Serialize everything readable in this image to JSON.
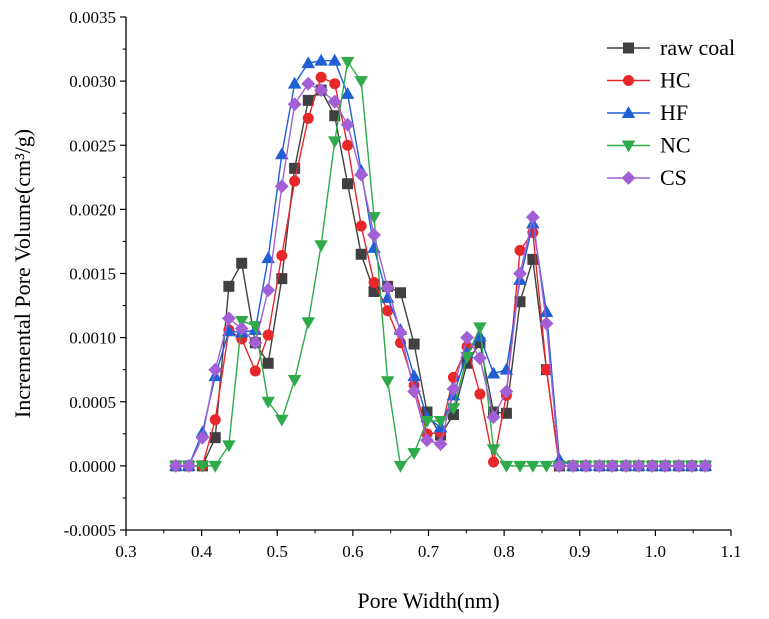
{
  "chart_data": {
    "type": "line",
    "xlabel": "Pore Width(nm)",
    "ylabel": "Incremental Pore Volume(cm³/g)",
    "xlim": [
      0.3,
      1.1
    ],
    "ylim": [
      -0.0005,
      0.0035
    ],
    "xticks": [
      "0.3",
      "0.4",
      "0.5",
      "0.6",
      "0.7",
      "0.8",
      "0.9",
      "1.0",
      "1.1"
    ],
    "yticks": [
      "-0.0005",
      "0.0000",
      "0.0005",
      "0.0010",
      "0.0015",
      "0.0020",
      "0.0025",
      "0.0030",
      "0.0035"
    ],
    "legend_position": "top-right",
    "grid": false,
    "x": [
      0.366,
      0.383,
      0.401,
      0.418,
      0.436,
      0.453,
      0.471,
      0.488,
      0.506,
      0.523,
      0.541,
      0.558,
      0.576,
      0.593,
      0.611,
      0.628,
      0.646,
      0.663,
      0.681,
      0.698,
      0.716,
      0.733,
      0.751,
      0.768,
      0.786,
      0.803,
      0.821,
      0.838,
      0.856,
      0.873,
      0.891,
      0.908,
      0.926,
      0.943,
      0.961,
      0.978,
      0.996,
      1.013,
      1.031,
      1.048,
      1.066
    ],
    "series": [
      {
        "name": "raw coal",
        "color": "#404040",
        "marker": "square",
        "values": [
          0.0,
          0.0,
          0.0,
          0.00022,
          0.0014,
          0.00158,
          0.00096,
          0.0008,
          0.00146,
          0.00232,
          0.00285,
          0.00293,
          0.00273,
          0.0022,
          0.00165,
          0.00136,
          0.0014,
          0.00135,
          0.00095,
          0.00042,
          0.00024,
          0.0004,
          0.0008,
          0.00096,
          0.00042,
          0.00041,
          0.00128,
          0.00161,
          0.00075,
          0.0,
          0.0,
          0.0,
          0.0,
          0.0,
          0.0,
          0.0,
          0.0,
          0.0,
          0.0,
          0.0,
          0.0
        ]
      },
      {
        "name": "HC",
        "color": "#e8272a",
        "marker": "circle",
        "values": [
          0.0,
          0.0,
          0.0,
          0.00036,
          0.00106,
          0.00099,
          0.00074,
          0.00102,
          0.00164,
          0.00222,
          0.00271,
          0.00303,
          0.00298,
          0.0025,
          0.00187,
          0.00143,
          0.00121,
          0.00096,
          0.00063,
          0.00025,
          0.00026,
          0.00069,
          0.00093,
          0.00056,
          3e-05,
          0.00055,
          0.00168,
          0.00182,
          0.00075,
          0.0,
          0.0,
          0.0,
          0.0,
          0.0,
          0.0,
          0.0,
          0.0,
          0.0,
          0.0,
          0.0,
          0.0
        ]
      },
      {
        "name": "HF",
        "color": "#1f5fd6",
        "marker": "triangle-up",
        "values": [
          0.0,
          0.0,
          0.00026,
          0.0007,
          0.00105,
          0.00104,
          0.00106,
          0.00162,
          0.00243,
          0.00298,
          0.00314,
          0.00316,
          0.00316,
          0.0029,
          0.0023,
          0.0017,
          0.00131,
          0.00106,
          0.0007,
          0.00038,
          0.0003,
          0.00055,
          0.00088,
          0.00101,
          0.00072,
          0.00075,
          0.00145,
          0.00189,
          0.0012,
          5e-05,
          0.0,
          0.0,
          0.0,
          0.0,
          0.0,
          0.0,
          0.0,
          0.0,
          0.0,
          0.0,
          0.0
        ]
      },
      {
        "name": "NC",
        "color": "#2eaa4a",
        "marker": "triangle-down",
        "values": [
          0.0,
          0.0,
          0.0,
          0.0,
          0.00016,
          0.00113,
          0.00109,
          0.0005,
          0.00036,
          0.00067,
          0.00112,
          0.00172,
          0.00253,
          0.00315,
          0.003,
          0.00194,
          0.00066,
          0.0,
          0.0001,
          0.00035,
          0.00035,
          0.00045,
          0.00085,
          0.00108,
          0.00013,
          0.0,
          0.0,
          0.0,
          0.0,
          0.0,
          0.0,
          0.0,
          0.0,
          0.0,
          0.0,
          0.0,
          0.0,
          0.0,
          0.0,
          0.0,
          0.0
        ]
      },
      {
        "name": "CS",
        "color": "#a35fd6",
        "marker": "diamond",
        "values": [
          0.0,
          0.0,
          0.00022,
          0.00075,
          0.00115,
          0.00107,
          0.00096,
          0.00137,
          0.00218,
          0.00282,
          0.00298,
          0.00293,
          0.00284,
          0.00266,
          0.00227,
          0.0018,
          0.00139,
          0.00104,
          0.00058,
          0.0002,
          0.00017,
          0.0006,
          0.001,
          0.00084,
          0.00038,
          0.00058,
          0.0015,
          0.00194,
          0.00111,
          0.0,
          0.0,
          0.0,
          0.0,
          0.0,
          0.0,
          0.0,
          0.0,
          0.0,
          0.0,
          0.0,
          0.0
        ]
      }
    ]
  }
}
